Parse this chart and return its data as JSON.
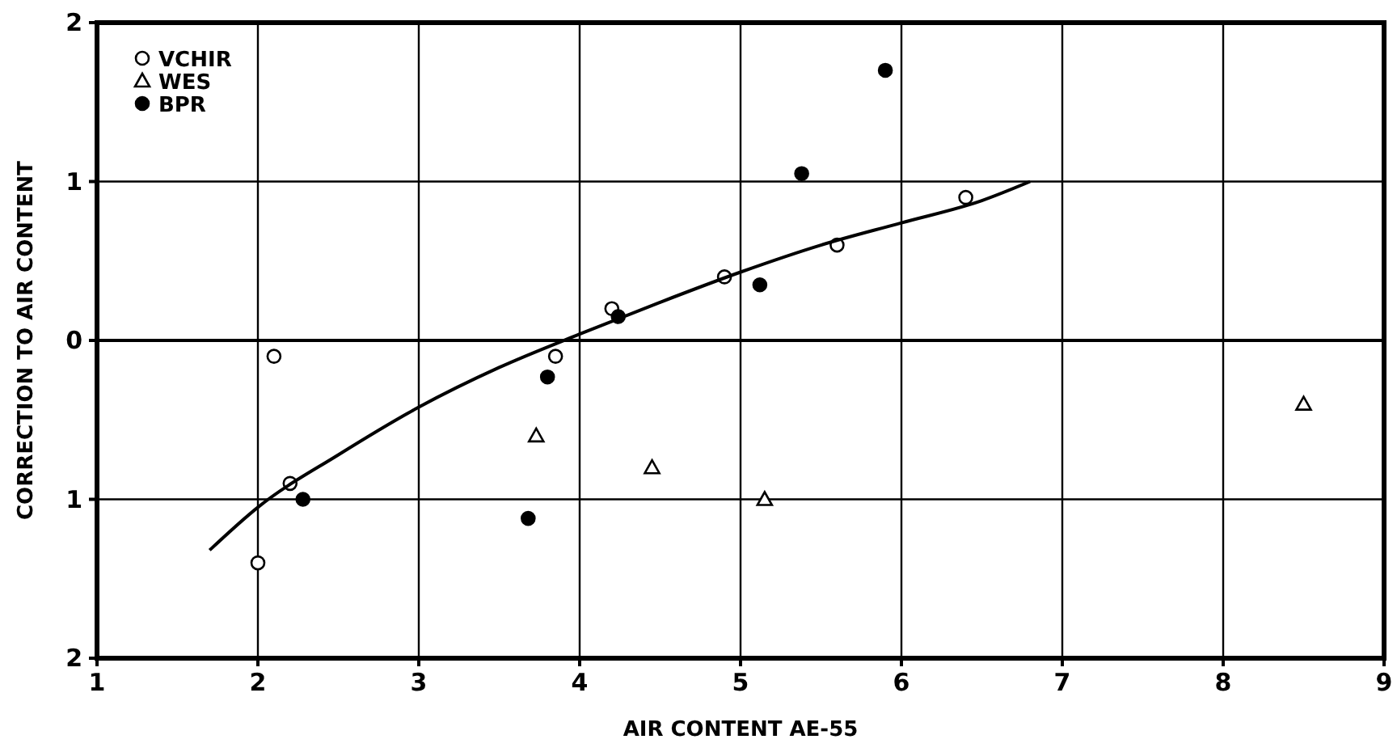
{
  "chart_data": {
    "type": "scatter",
    "xlabel": "AIR CONTENT AE-55",
    "ylabel": "CORRECTION TO AIR CONTENT",
    "xlim": [
      1,
      9
    ],
    "xticks": [
      1,
      2,
      3,
      4,
      5,
      6,
      7,
      8,
      9
    ],
    "ylim": [
      -2,
      2
    ],
    "yticks": [
      {
        "value": -2,
        "label": "2"
      },
      {
        "value": -1,
        "label": "1"
      },
      0,
      1,
      2
    ],
    "grid": true,
    "legend": "top left",
    "series": [
      {
        "name": "VCHIR",
        "color": "#000000",
        "marker": "circle",
        "x": [
          2.1,
          2.2,
          2.0,
          3.85,
          4.2,
          4.9,
          5.6,
          6.4
        ],
        "values": [
          -0.1,
          -0.9,
          -1.4,
          -0.1,
          0.2,
          0.4,
          0.6,
          0.9
        ]
      },
      {
        "name": "WES",
        "color": "#000000",
        "marker": "triangle",
        "x": [
          3.73,
          4.45,
          5.15,
          8.5
        ],
        "values": [
          -0.6,
          -0.8,
          -1.0,
          -0.4
        ]
      },
      {
        "name": "BPR",
        "color": "#000000",
        "marker": "circle",
        "x": [
          2.28,
          3.8,
          3.68,
          4.24,
          5.12,
          5.38,
          5.9
        ],
        "values": [
          -1.0,
          -0.23,
          -1.12,
          0.15,
          0.35,
          1.05,
          1.7
        ]
      },
      {
        "type": "line",
        "color": "#000000",
        "marker": "none",
        "line_style": "solid",
        "x": [
          1.7,
          2.0,
          2.5,
          3.0,
          3.5,
          4.0,
          4.5,
          5.0,
          5.5,
          6.0,
          6.5,
          6.8
        ],
        "values": [
          -1.32,
          -1.05,
          -0.72,
          -0.42,
          -0.17,
          0.04,
          0.24,
          0.43,
          0.6,
          0.74,
          0.88,
          1.0
        ]
      }
    ]
  }
}
